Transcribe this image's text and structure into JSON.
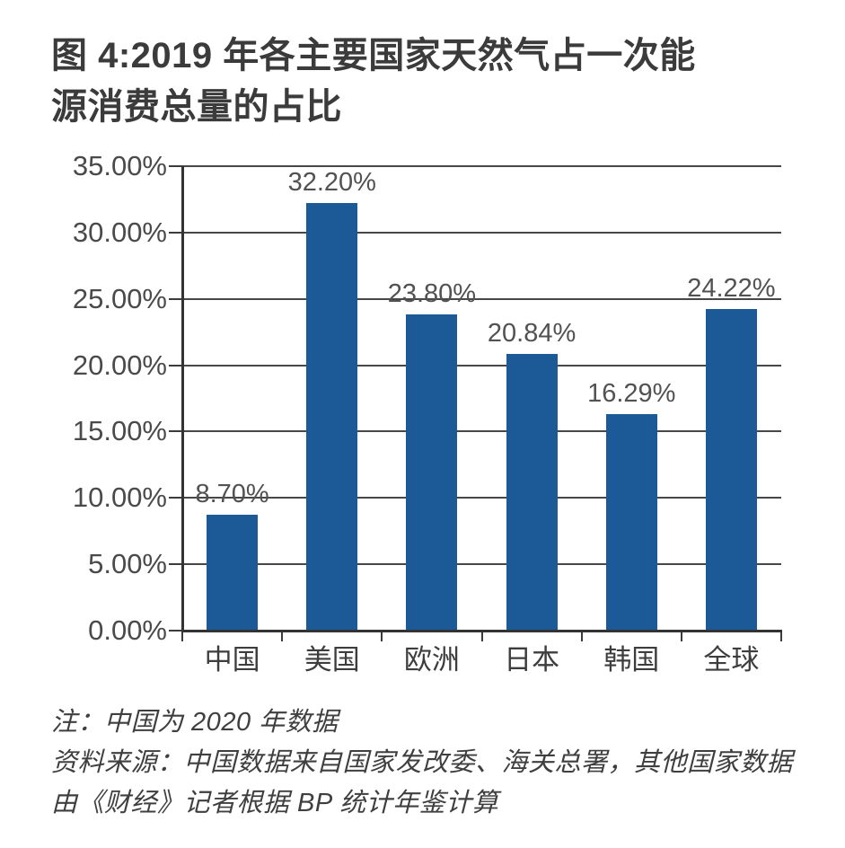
{
  "figure": {
    "title_line1": "图 4:2019 年各主要国家天然气占一次能",
    "title_line2": "源消费总量的占比",
    "note_line1": "注：中国为 2020 年数据",
    "note_line2": "资料来源：中国数据来自国家发改委、海关总署，其他国家数据",
    "note_line3": "由《财经》记者根据 BP 统计年鉴计算"
  },
  "chart_data": {
    "type": "bar",
    "title": "图4:2019年各主要国家天然气占一次能源消费总量的占比",
    "categories": [
      "中国",
      "美国",
      "欧洲",
      "日本",
      "韩国",
      "全球"
    ],
    "values": [
      8.7,
      32.2,
      23.8,
      20.84,
      16.29,
      24.22
    ],
    "value_labels": [
      "8.70%",
      "32.20%",
      "23.80%",
      "20.84%",
      "16.29%",
      "24.22%"
    ],
    "xlabel": "",
    "ylabel": "",
    "ylim": [
      0,
      35
    ],
    "ytick_step": 5,
    "ytick_labels": [
      "0.00%",
      "5.00%",
      "10.00%",
      "15.00%",
      "20.00%",
      "25.00%",
      "30.00%",
      "35.00%"
    ],
    "grid": true,
    "legend_position": "none",
    "bar_color": "#1b5a96",
    "annotations": [
      "注：中国为2020年数据",
      "资料来源：中国数据来自国家发改委、海关总署，其他国家数据由《财经》记者根据BP统计年鉴计算"
    ]
  },
  "colors": {
    "bar": "#1b5a96",
    "gridline": "#474747",
    "axis": "#333333",
    "title_text": "#3b3b3b",
    "tick_text": "#4a4a4a",
    "background": "#ffffff"
  }
}
